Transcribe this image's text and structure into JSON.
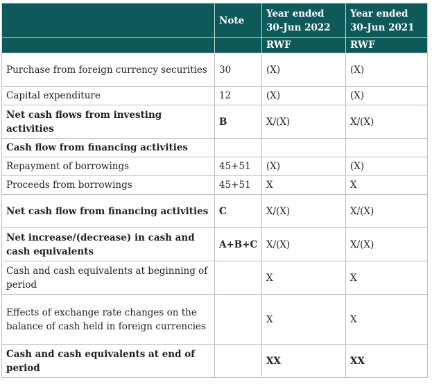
{
  "header": {
    "note": "Note",
    "col1": [
      "Year ended",
      "30-Jun 2022"
    ],
    "col2": [
      "Year ended",
      "30-Jun 2021"
    ],
    "unit1": "RWF",
    "unit2": "RWF"
  },
  "rows": [
    {
      "desc": "Purchase from foreign currency securities",
      "note": "30",
      "v1": "(X)",
      "v2": "(X)"
    },
    {
      "desc": "Capital expenditure",
      "note": "12",
      "v1": "(X)",
      "v2": "(X)"
    },
    {
      "desc": "Net cash flows from investing activities",
      "note": "B",
      "v1": "X/(X)",
      "v2": "X/(X)"
    },
    {
      "desc": "Cash flow from financing activities",
      "note": "",
      "v1": "",
      "v2": ""
    },
    {
      "desc": "Repayment of borrowings",
      "note": "45+51",
      "v1": "(X)",
      "v2": "(X)"
    },
    {
      "desc": "Proceeds from borrowings",
      "note": "45+51",
      "v1": "X",
      "v2": "X"
    },
    {
      "desc": "Net cash flow from financing activities",
      "note": "C",
      "v1": "X/(X)",
      "v2": "X/(X)"
    },
    {
      "desc": "Net increase/(decrease) in cash and cash equivalents",
      "note": "A+B+C",
      "v1": "X/(X)",
      "v2": "X/(X)"
    },
    {
      "desc": "Cash and cash equivalents at beginning of period",
      "note": "",
      "v1": "X",
      "v2": "X"
    },
    {
      "desc": "Effects of exchange rate changes on the balance of cash held in foreign currencies",
      "note": "",
      "v1": "X",
      "v2": "X"
    },
    {
      "desc": "Cash and cash equivalents at end of period",
      "note": "",
      "v1": "XX",
      "v2": "XX"
    }
  ]
}
